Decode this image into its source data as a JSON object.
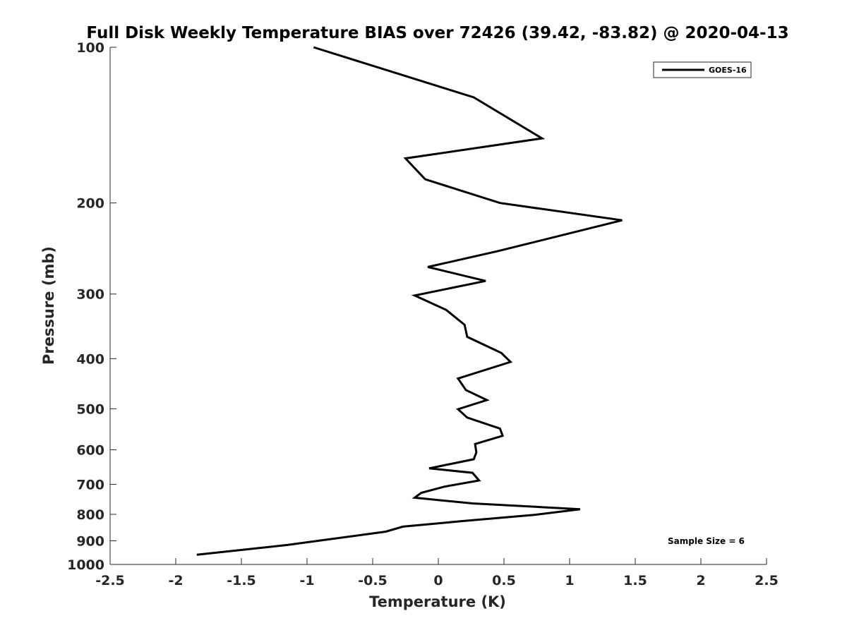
{
  "chart_data": {
    "type": "line",
    "title": "Full Disk Weekly Temperature BIAS over 72426 (39.42, -83.82) @ 2020-04-13",
    "xlabel": "Temperature (K)",
    "ylabel": "Pressure (mb)",
    "xlim": [
      -2.5,
      2.5
    ],
    "ylim": [
      100,
      1000
    ],
    "y_scale": "log",
    "y_reversed": true,
    "grid": false,
    "legend_position": "top-right",
    "x_ticks": [
      "-2.5",
      "-2",
      "-1.5",
      "-1",
      "-0.5",
      "0",
      "0.5",
      "1",
      "1.5",
      "2",
      "2.5"
    ],
    "y_ticks": [
      "100",
      "200",
      "300",
      "400",
      "500",
      "600",
      "700",
      "800",
      "900",
      "1000"
    ],
    "annotation": "Sample Size = 6",
    "series": [
      {
        "name": "GOES-16",
        "color": "#000000",
        "points": [
          [
            -0.95,
            100
          ],
          [
            0.27,
            125
          ],
          [
            0.79,
            150
          ],
          [
            -0.25,
            164
          ],
          [
            -0.1,
            180
          ],
          [
            0.47,
            200
          ],
          [
            1.4,
            216
          ],
          [
            0.45,
            248
          ],
          [
            -0.08,
            266
          ],
          [
            0.36,
            283
          ],
          [
            -0.18,
            302
          ],
          [
            0.06,
            322
          ],
          [
            0.2,
            344
          ],
          [
            0.22,
            363
          ],
          [
            0.48,
            390
          ],
          [
            0.55,
            406
          ],
          [
            0.15,
            437
          ],
          [
            0.21,
            460
          ],
          [
            0.37,
            481
          ],
          [
            0.15,
            501
          ],
          [
            0.22,
            520
          ],
          [
            0.47,
            546
          ],
          [
            0.49,
            564
          ],
          [
            0.28,
            585
          ],
          [
            0.29,
            607
          ],
          [
            0.27,
            626
          ],
          [
            -0.07,
            652
          ],
          [
            0.26,
            665
          ],
          [
            0.31,
            688
          ],
          [
            0.05,
            707
          ],
          [
            -0.13,
            727
          ],
          [
            -0.18,
            743
          ],
          [
            0.26,
            762
          ],
          [
            1.08,
            782
          ],
          [
            0.73,
            802
          ],
          [
            0.17,
            825
          ],
          [
            -0.27,
            845
          ],
          [
            -0.4,
            864
          ],
          [
            -1.15,
            917
          ],
          [
            -1.84,
            958
          ]
        ]
      }
    ]
  }
}
